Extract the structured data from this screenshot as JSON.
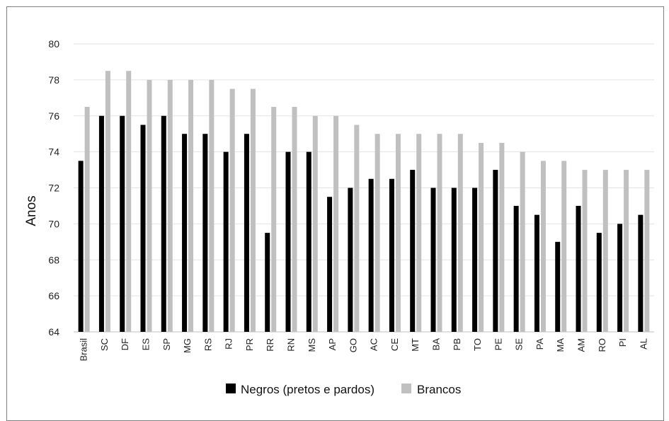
{
  "chart_data": {
    "type": "bar",
    "title": "",
    "xlabel": "",
    "ylabel": "Anos",
    "ylim": [
      64,
      80
    ],
    "yticks": [
      64,
      66,
      68,
      70,
      72,
      74,
      76,
      78,
      80
    ],
    "grid": true,
    "legend_position": "bottom",
    "categories": [
      "Brasil",
      "SC",
      "DF",
      "ES",
      "SP",
      "MG",
      "RS",
      "RJ",
      "PR",
      "RR",
      "RN",
      "MS",
      "AP",
      "GO",
      "AC",
      "CE",
      "MT",
      "BA",
      "PB",
      "TO",
      "PE",
      "SE",
      "PA",
      "MA",
      "AM",
      "RO",
      "PI",
      "AL"
    ],
    "series": [
      {
        "name": "Negros (pretos e pardos)",
        "color": "#000000",
        "values": [
          73.5,
          76,
          76,
          75.5,
          76,
          75,
          75,
          74,
          75,
          69.5,
          74,
          74,
          71.5,
          72,
          72.5,
          72.5,
          73,
          72,
          72,
          72,
          73,
          71,
          70.5,
          69,
          71,
          69.5,
          70,
          70.5
        ]
      },
      {
        "name": "Brancos",
        "color": "#c0c0c0",
        "values": [
          76.5,
          78.5,
          78.5,
          78,
          78,
          78,
          78,
          77.5,
          77.5,
          76.5,
          76.5,
          76,
          76,
          75.5,
          75,
          75,
          75,
          75,
          75,
          74.5,
          74.5,
          74,
          73.5,
          73.5,
          73,
          73,
          73,
          73
        ]
      }
    ]
  }
}
